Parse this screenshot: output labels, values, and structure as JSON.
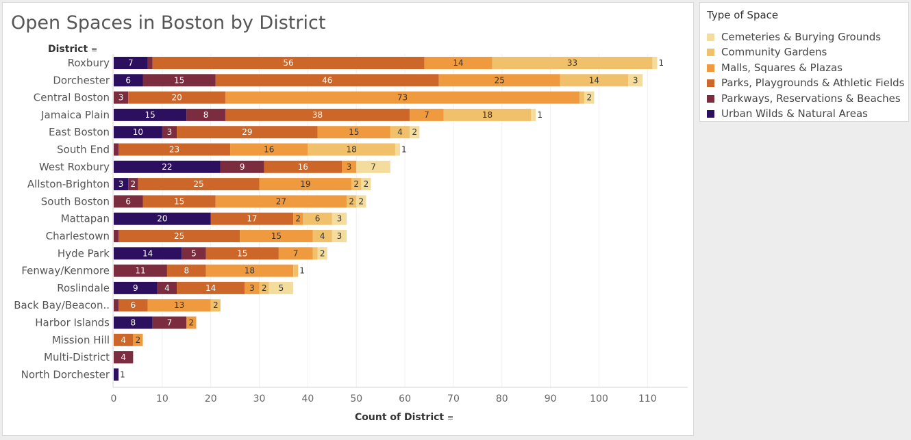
{
  "title": "Open Spaces in Boston by District",
  "dimension_header": "District",
  "sort_glyph": "≡",
  "legend": {
    "title": "Type of Space",
    "items": [
      {
        "label": "Cemeteries & Burying Grounds",
        "color": "#f3dc9c"
      },
      {
        "label": "Community Gardens",
        "color": "#f0c06a"
      },
      {
        "label": "Malls, Squares & Plazas",
        "color": "#ef9a3e"
      },
      {
        "label": "Parks, Playgrounds & Athletic Fields",
        "color": "#cc6629"
      },
      {
        "label": "Parkways, Reservations & Beaches",
        "color": "#7b2c3e"
      },
      {
        "label": "Urban Wilds & Natural Areas",
        "color": "#2c0f5e"
      }
    ]
  },
  "chart_data": {
    "type": "bar",
    "orientation": "horizontal",
    "stacked": true,
    "xlabel": "Count of District",
    "ylabel": "District",
    "xlim": [
      0,
      112
    ],
    "xticks": [
      0,
      10,
      20,
      30,
      40,
      50,
      60,
      70,
      80,
      90,
      100,
      110
    ],
    "categories": [
      "Roxbury",
      "Dorchester",
      "Central Boston",
      "Jamaica Plain",
      "East Boston",
      "South End",
      "West Roxbury",
      "Allston-Brighton",
      "South Boston",
      "Mattapan",
      "Charlestown",
      "Hyde Park",
      "Fenway/Kenmore",
      "Roslindale",
      "Back Bay/Beacon..",
      "Harbor Islands",
      "Mission Hill",
      "Multi-District",
      "North Dorchester"
    ],
    "series": [
      {
        "name": "Urban Wilds & Natural Areas",
        "color": "#2c0f5e",
        "values": [
          7,
          6,
          0,
          15,
          10,
          0,
          22,
          3,
          0,
          20,
          0,
          14,
          0,
          9,
          0,
          8,
          0,
          0,
          1
        ]
      },
      {
        "name": "Parkways, Reservations & Beaches",
        "color": "#7b2c3e",
        "values": [
          1,
          15,
          3,
          8,
          3,
          1,
          9,
          2,
          6,
          0,
          1,
          5,
          11,
          4,
          1,
          7,
          0,
          4,
          0
        ]
      },
      {
        "name": "Parks, Playgrounds & Athletic Fields",
        "color": "#cc6629",
        "values": [
          56,
          46,
          20,
          38,
          29,
          23,
          16,
          25,
          15,
          17,
          25,
          15,
          8,
          14,
          6,
          0,
          4,
          0,
          0
        ]
      },
      {
        "name": "Malls, Squares & Plazas",
        "color": "#ef9a3e",
        "values": [
          14,
          25,
          73,
          7,
          15,
          16,
          3,
          19,
          27,
          2,
          15,
          7,
          18,
          3,
          13,
          2,
          2,
          0,
          0
        ]
      },
      {
        "name": "Community Gardens",
        "color": "#f0c06a",
        "values": [
          33,
          14,
          1,
          18,
          4,
          18,
          0,
          2,
          2,
          6,
          4,
          1,
          1,
          2,
          2,
          0,
          0,
          0,
          0
        ]
      },
      {
        "name": "Cemeteries & Burying Grounds",
        "color": "#f3dc9c",
        "values": [
          1,
          3,
          2,
          1,
          2,
          1,
          7,
          2,
          2,
          3,
          3,
          2,
          0,
          5,
          0,
          0,
          0,
          0,
          0
        ]
      }
    ],
    "data_label_minimum": 0,
    "grid": true,
    "legend_position": "right"
  }
}
